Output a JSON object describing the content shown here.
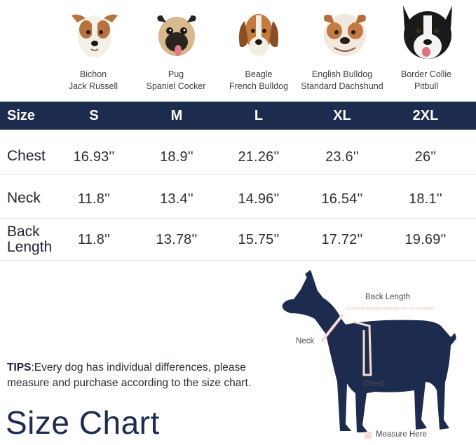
{
  "breeds": [
    {
      "line1": "Bichon",
      "line2": "Jack Russell",
      "icon": "jack-russell-photo"
    },
    {
      "line1": "Pug",
      "line2": "Spaniel Cocker",
      "icon": "pug-photo"
    },
    {
      "line1": "Beagle",
      "line2": "French Bulldog",
      "icon": "beagle-photo"
    },
    {
      "line1": "English Bulldog",
      "line2": "Standard Dachshund",
      "icon": "english-bulldog-photo"
    },
    {
      "line1": "Border Collie",
      "line2": "Pitbull",
      "icon": "border-collie-photo"
    }
  ],
  "table": {
    "header": [
      "Size",
      "S",
      "M",
      "L",
      "XL",
      "2XL"
    ],
    "rows": [
      {
        "label": "Chest",
        "values": [
          "16.93''",
          "18.9''",
          "21.26''",
          "23.6''",
          "26''"
        ]
      },
      {
        "label": "Neck",
        "values": [
          "11.8''",
          "13.4''",
          "14.96''",
          "16.54''",
          "18.1''"
        ]
      },
      {
        "label_line1": "Back",
        "label_line2": "Length",
        "values": [
          "11.8''",
          "13.78''",
          "15.75''",
          "17.72''",
          "19.69''"
        ]
      }
    ]
  },
  "tips": {
    "prefix": "TIPS",
    "text": ":Every dog has individual differences, please measure and purchase according to the size chart."
  },
  "title": "Size Chart",
  "diagram": {
    "back_length": "Back Length",
    "neck": "Neck",
    "chest": "Chest",
    "legend": "Measure Here"
  },
  "colors": {
    "navy": "#1d2b4f",
    "measure": "#f7dcd5"
  }
}
